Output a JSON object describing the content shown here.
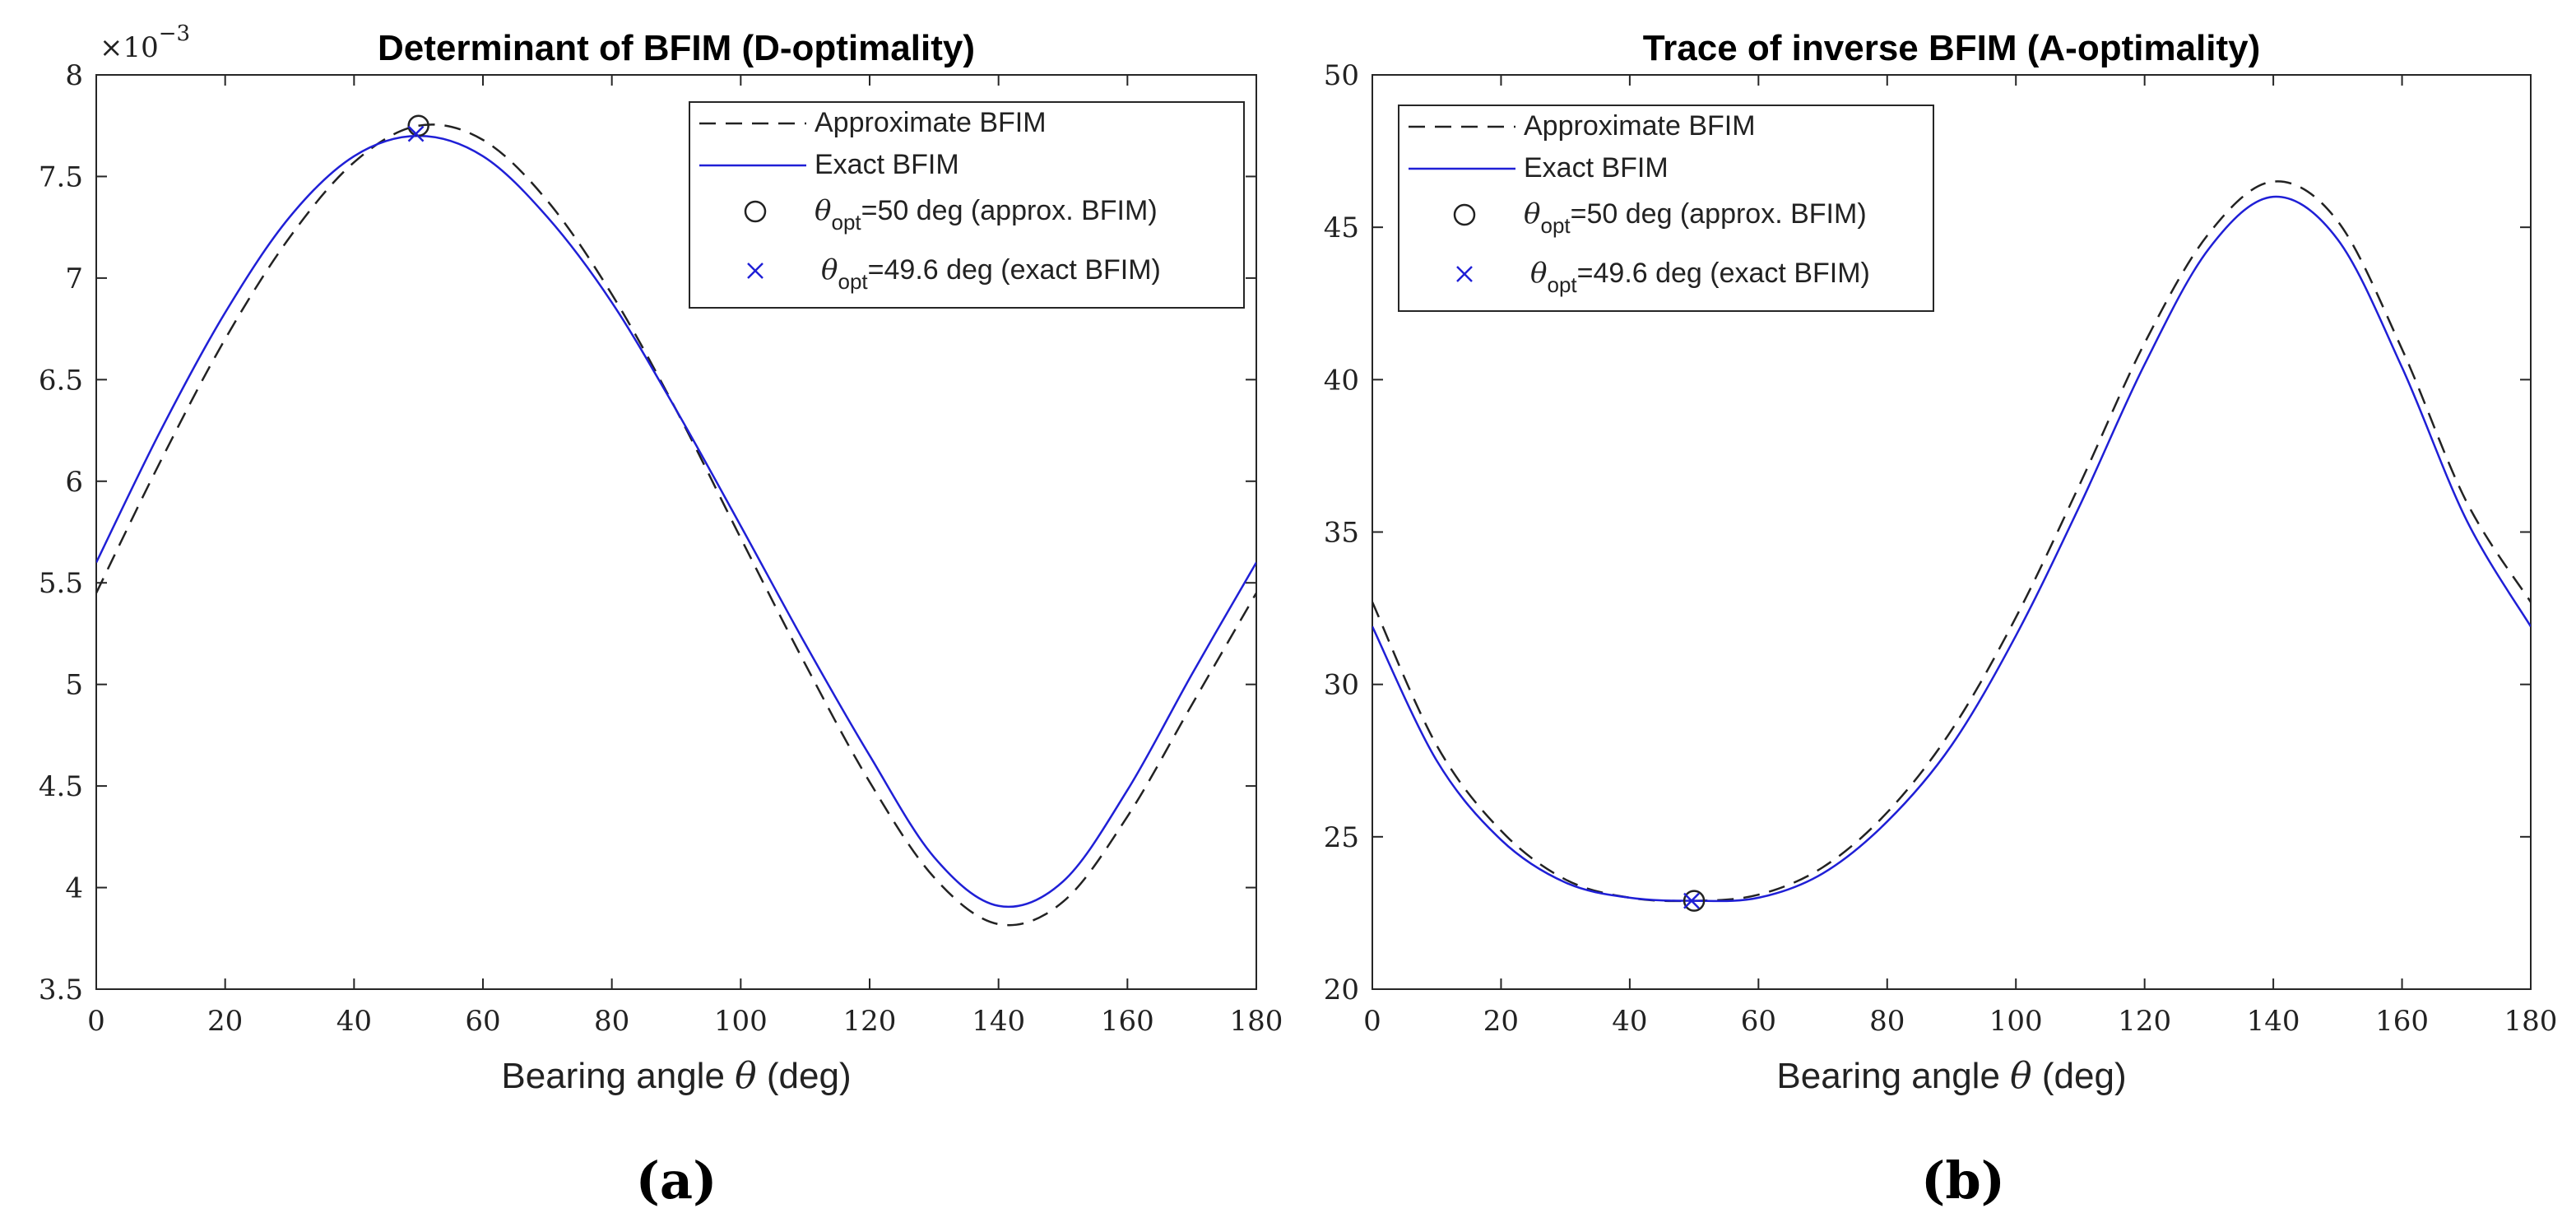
{
  "chart_data": [
    {
      "type": "line",
      "panel_label": "(a)",
      "title": "Determinant of BFIM (D-optimality)",
      "xlabel_prefix": "Bearing angle ",
      "xlabel_symbol": "θ",
      "xlabel_suffix": " (deg)",
      "ylabel": "",
      "xlim": [
        0,
        180
      ],
      "ylim": [
        3.5,
        8
      ],
      "xticks": [
        0,
        20,
        40,
        60,
        80,
        100,
        120,
        140,
        160,
        180
      ],
      "yticks": [
        3.5,
        4,
        4.5,
        5,
        5.5,
        6,
        6.5,
        7,
        7.5,
        8
      ],
      "ytick_labels": [
        "3.5",
        "4",
        "4.5",
        "5",
        "5.5",
        "6",
        "6.5",
        "7",
        "7.5",
        "8"
      ],
      "y_multiplier": {
        "base": "×10",
        "exponent": "−3"
      },
      "legend_position": "top-right",
      "series": [
        {
          "name": "Approximate BFIM",
          "style": "dashed",
          "color": "#222222",
          "x": [
            0,
            10,
            20,
            30,
            40,
            50,
            60,
            70,
            80,
            90,
            100,
            110,
            120,
            130,
            140,
            150,
            160,
            170,
            180
          ],
          "y": [
            5.45,
            6.1,
            6.7,
            7.2,
            7.57,
            7.75,
            7.68,
            7.38,
            6.92,
            6.35,
            5.72,
            5.1,
            4.52,
            4.05,
            3.82,
            3.93,
            4.35,
            4.9,
            5.45
          ]
        },
        {
          "name": "Exact BFIM",
          "style": "solid",
          "color": "#1f1fd6",
          "x": [
            0,
            10,
            20,
            30,
            40,
            50,
            60,
            70,
            80,
            90,
            100,
            110,
            120,
            130,
            140,
            150,
            160,
            170,
            180
          ],
          "y": [
            5.6,
            6.25,
            6.83,
            7.3,
            7.6,
            7.7,
            7.6,
            7.3,
            6.88,
            6.35,
            5.78,
            5.2,
            4.65,
            4.15,
            3.91,
            4.03,
            4.48,
            5.05,
            5.6
          ]
        }
      ],
      "markers": [
        {
          "name": "θopt=50 deg (approx. BFIM)",
          "legend_var": "θ",
          "legend_sub": "opt",
          "legend_rest": "=50 deg (approx. BFIM)",
          "symbol": "circle",
          "color": "#222222",
          "x": 50,
          "y": 7.75
        },
        {
          "name": "θopt=49.6 deg (exact BFIM)",
          "legend_var": "θ",
          "legend_sub": "opt",
          "legend_rest": "=49.6 deg (exact BFIM)",
          "symbol": "x",
          "color": "#1f1fd6",
          "x": 49.6,
          "y": 7.71
        }
      ]
    },
    {
      "type": "line",
      "panel_label": "(b)",
      "title": "Trace of inverse BFIM (A-optimality)",
      "xlabel_prefix": "Bearing angle ",
      "xlabel_symbol": "θ",
      "xlabel_suffix": " (deg)",
      "ylabel": "",
      "xlim": [
        0,
        180
      ],
      "ylim": [
        20,
        50
      ],
      "xticks": [
        0,
        20,
        40,
        60,
        80,
        100,
        120,
        140,
        160,
        180
      ],
      "yticks": [
        20,
        25,
        30,
        35,
        40,
        45,
        50
      ],
      "ytick_labels": [
        "20",
        "25",
        "30",
        "35",
        "40",
        "45",
        "50"
      ],
      "legend_position": "top-left",
      "series": [
        {
          "name": "Approximate BFIM",
          "style": "dashed",
          "color": "#222222",
          "x": [
            0,
            10,
            20,
            30,
            40,
            50,
            60,
            70,
            80,
            90,
            100,
            110,
            120,
            130,
            140,
            150,
            160,
            170,
            180
          ],
          "y": [
            32.7,
            28.0,
            25.2,
            23.6,
            23.0,
            22.9,
            23.1,
            24.0,
            25.8,
            28.5,
            32.2,
            36.6,
            41.2,
            44.8,
            46.5,
            45.2,
            41.0,
            36.0,
            32.7
          ]
        },
        {
          "name": "Exact BFIM",
          "style": "solid",
          "color": "#1f1fd6",
          "x": [
            0,
            10,
            20,
            30,
            40,
            50,
            60,
            70,
            80,
            90,
            100,
            110,
            120,
            130,
            140,
            150,
            160,
            170,
            180
          ],
          "y": [
            31.9,
            27.5,
            24.9,
            23.5,
            23.0,
            22.9,
            23.0,
            23.8,
            25.5,
            28.0,
            31.6,
            35.9,
            40.5,
            44.3,
            46.0,
            44.6,
            40.4,
            35.4,
            31.9
          ]
        }
      ],
      "markers": [
        {
          "name": "θopt=50 deg (approx. BFIM)",
          "legend_var": "θ",
          "legend_sub": "opt",
          "legend_rest": "=50 deg (approx. BFIM)",
          "symbol": "circle",
          "color": "#222222",
          "x": 50,
          "y": 22.9
        },
        {
          "name": "θopt=49.6 deg (exact BFIM)",
          "legend_var": "θ",
          "legend_sub": "opt",
          "legend_rest": "=49.6 deg (exact BFIM)",
          "symbol": "x",
          "color": "#1f1fd6",
          "x": 49.6,
          "y": 22.9
        }
      ]
    }
  ]
}
